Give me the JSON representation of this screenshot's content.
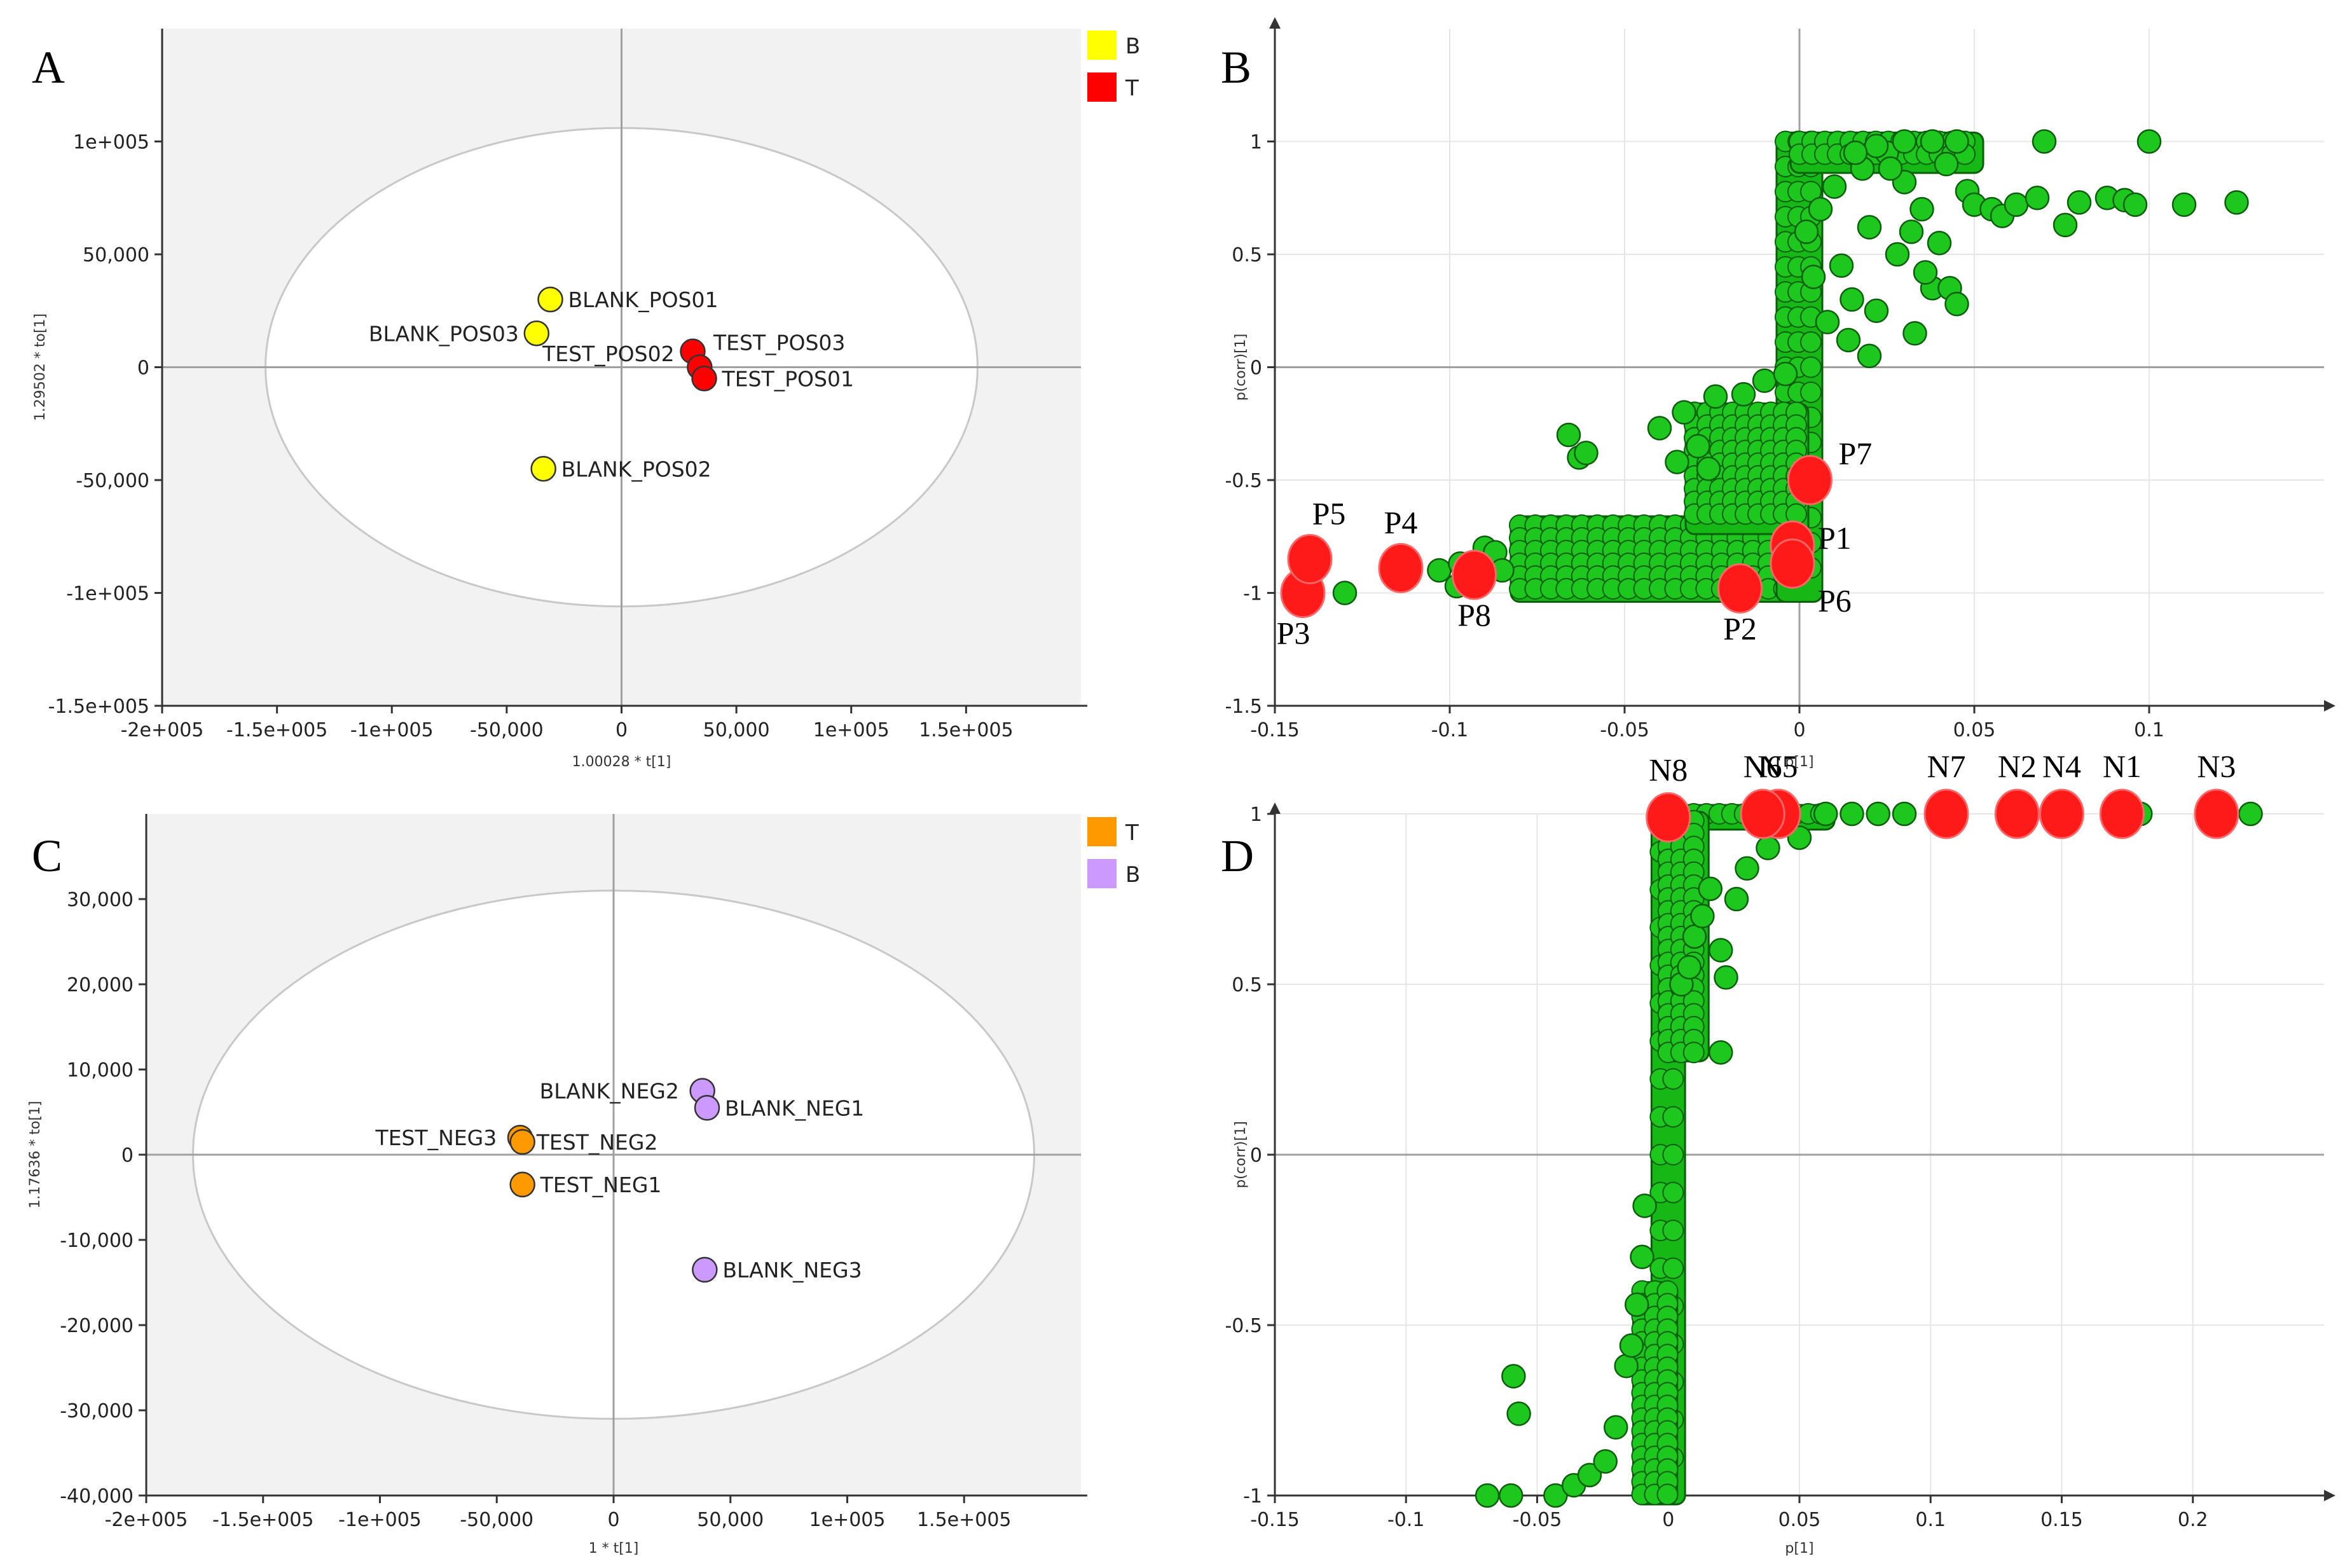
{
  "chart_data": [
    {
      "panel": "A",
      "type": "scatter",
      "xlabel": "1.00028 * t[1]",
      "ylabel": "1.29502 * to[1]",
      "xlim": [
        -200000,
        200000
      ],
      "ylim": [
        -150000,
        150000
      ],
      "xticks": [
        {
          "v": -200000,
          "label": "-2e+005"
        },
        {
          "v": -150000,
          "label": "-1.5e+005"
        },
        {
          "v": -100000,
          "label": "-1e+005"
        },
        {
          "v": -50000,
          "label": "-50,000"
        },
        {
          "v": 0,
          "label": "0"
        },
        {
          "v": 50000,
          "label": "50,000"
        },
        {
          "v": 100000,
          "label": "1e+005"
        },
        {
          "v": 150000,
          "label": "1.5e+005"
        }
      ],
      "yticks": [
        {
          "v": 100000,
          "label": "1e+005"
        },
        {
          "v": 50000,
          "label": "50,000"
        },
        {
          "v": 0,
          "label": "0"
        },
        {
          "v": -50000,
          "label": "-50,000"
        },
        {
          "v": -100000,
          "label": "-1e+005"
        },
        {
          "v": -150000,
          "label": "-1.5e+005"
        }
      ],
      "ellipse": {
        "cx": 0,
        "cy": 0,
        "rx": 155000,
        "ry": 106000
      },
      "legend": [
        {
          "label": "B",
          "color": "#ffff00"
        },
        {
          "label": "T",
          "color": "#ff0000"
        }
      ],
      "points": [
        {
          "x": -31000,
          "y": 30000,
          "label": "BLANK_POS01",
          "color": "#ffff00",
          "anchor": "start"
        },
        {
          "x": -37000,
          "y": 15000,
          "label": "BLANK_POS03",
          "color": "#ffff00",
          "anchor": "end"
        },
        {
          "x": -34000,
          "y": -45000,
          "label": "BLANK_POS02",
          "color": "#ffff00",
          "anchor": "start"
        },
        {
          "x": 31000,
          "y": 7000,
          "label": "TEST_POS03",
          "color": "#ff0000",
          "anchor": "start",
          "lx": 40000,
          "ly": 11000
        },
        {
          "x": 34000,
          "y": 0,
          "label": "TEST_POS02",
          "color": "#ff0000",
          "anchor": "end",
          "lx": 23000,
          "ly": 6000
        },
        {
          "x": 36000,
          "y": -5000,
          "label": "TEST_POS01",
          "color": "#ff0000",
          "anchor": "start"
        }
      ]
    },
    {
      "panel": "B",
      "type": "scatter",
      "xlabel": "p[1]",
      "ylabel": "p(corr)[1]",
      "xlim": [
        -0.15,
        0.15
      ],
      "ylim": [
        -1.5,
        1.5
      ],
      "xticks": [
        {
          "v": -0.15,
          "label": "-0.15"
        },
        {
          "v": -0.1,
          "label": "-0.1"
        },
        {
          "v": -0.05,
          "label": "-0.05"
        },
        {
          "v": 0,
          "label": "0"
        },
        {
          "v": 0.05,
          "label": "0.05"
        },
        {
          "v": 0.1,
          "label": "0.1"
        }
      ],
      "yticks": [
        {
          "v": 1,
          "label": "1"
        },
        {
          "v": 0.5,
          "label": "0.5"
        },
        {
          "v": 0,
          "label": "0"
        },
        {
          "v": -0.5,
          "label": "-0.5"
        },
        {
          "v": -1,
          "label": "-1"
        },
        {
          "v": -1.5,
          "label": "-1.5"
        }
      ],
      "markers": [
        {
          "label": "P1",
          "x": -0.002,
          "y": -0.79
        },
        {
          "label": "P2",
          "x": -0.017,
          "y": -0.98
        },
        {
          "label": "P3",
          "x": -0.142,
          "y": -1.0
        },
        {
          "label": "P4",
          "x": -0.114,
          "y": -0.89
        },
        {
          "label": "P5",
          "x": -0.14,
          "y": -0.85
        },
        {
          "label": "P6",
          "x": -0.002,
          "y": -0.87
        },
        {
          "label": "P7",
          "x": 0.003,
          "y": -0.5
        },
        {
          "label": "P8",
          "x": -0.093,
          "y": -0.92
        }
      ],
      "feature_points": [
        [
          -0.13,
          -1.0
        ],
        [
          -0.098,
          -0.97
        ],
        [
          -0.103,
          -0.9
        ],
        [
          -0.097,
          -0.87
        ],
        [
          -0.09,
          -0.8
        ],
        [
          -0.087,
          -0.82
        ],
        [
          -0.085,
          -0.9
        ],
        [
          -0.066,
          -0.3
        ],
        [
          -0.063,
          -0.4
        ],
        [
          -0.061,
          -0.38
        ],
        [
          -0.04,
          -0.27
        ],
        [
          -0.033,
          -0.2
        ],
        [
          -0.029,
          -0.35
        ],
        [
          -0.024,
          -0.13
        ],
        [
          -0.016,
          -0.12
        ],
        [
          -0.01,
          -0.06
        ],
        [
          -0.004,
          -0.03
        ],
        [
          -0.035,
          -0.42
        ],
        [
          -0.026,
          -0.45
        ],
        [
          0.002,
          0.6
        ],
        [
          0.004,
          0.4
        ],
        [
          0.006,
          0.7
        ],
        [
          0.01,
          0.8
        ],
        [
          0.012,
          0.45
        ],
        [
          0.015,
          0.3
        ],
        [
          0.018,
          0.88
        ],
        [
          0.02,
          0.62
        ],
        [
          0.022,
          0.25
        ],
        [
          0.025,
          0.95
        ],
        [
          0.028,
          0.5
        ],
        [
          0.03,
          0.82
        ],
        [
          0.033,
          0.15
        ],
        [
          0.035,
          0.7
        ],
        [
          0.038,
          0.35
        ],
        [
          0.04,
          0.55
        ],
        [
          0.042,
          0.9
        ],
        [
          0.043,
          0.35
        ],
        [
          0.045,
          0.28
        ],
        [
          0.048,
          0.78
        ],
        [
          0.05,
          0.72
        ],
        [
          0.055,
          0.7
        ],
        [
          0.058,
          0.67
        ],
        [
          0.062,
          0.72
        ],
        [
          0.068,
          0.75
        ],
        [
          0.076,
          0.63
        ],
        [
          0.08,
          0.73
        ],
        [
          0.088,
          0.75
        ],
        [
          0.093,
          0.74
        ],
        [
          0.096,
          0.72
        ],
        [
          0.11,
          0.72
        ],
        [
          0.125,
          0.73
        ],
        [
          0.07,
          1.0
        ],
        [
          0.1,
          1.0
        ],
        [
          0.045,
          1.0
        ],
        [
          0.038,
          1.0
        ],
        [
          0.03,
          1.0
        ],
        [
          0.022,
          0.98
        ],
        [
          0.016,
          0.95
        ],
        [
          0.026,
          0.88
        ],
        [
          0.014,
          0.12
        ],
        [
          0.02,
          0.05
        ],
        [
          0.008,
          0.2
        ],
        [
          0.032,
          0.6
        ],
        [
          0.036,
          0.42
        ]
      ],
      "clusters": [
        {
          "x0": -0.08,
          "x1": 0.0,
          "y0": -1.0,
          "y1": -0.7
        },
        {
          "x0": -0.004,
          "x1": 0.004,
          "y0": -1.0,
          "y1": 1.0
        },
        {
          "x0": 0.0,
          "x1": 0.05,
          "y0": 0.9,
          "y1": 1.0
        },
        {
          "x0": -0.03,
          "x1": 0.0,
          "y0": -0.7,
          "y1": -0.2
        }
      ]
    },
    {
      "panel": "C",
      "type": "scatter",
      "xlabel": "1 * t[1]",
      "ylabel": "1.17636 * to[1]",
      "xlim": [
        -200000,
        200000
      ],
      "ylim": [
        -40000,
        40000
      ],
      "xticks": [
        {
          "v": -200000,
          "label": "-2e+005"
        },
        {
          "v": -150000,
          "label": "-1.5e+005"
        },
        {
          "v": -100000,
          "label": "-1e+005"
        },
        {
          "v": -50000,
          "label": "-50,000"
        },
        {
          "v": 0,
          "label": "0"
        },
        {
          "v": 50000,
          "label": "50,000"
        },
        {
          "v": 100000,
          "label": "1e+005"
        },
        {
          "v": 150000,
          "label": "1.5e+005"
        }
      ],
      "yticks": [
        {
          "v": 30000,
          "label": "30,000"
        },
        {
          "v": 20000,
          "label": "20,000"
        },
        {
          "v": 10000,
          "label": "10,000"
        },
        {
          "v": 0,
          "label": "0"
        },
        {
          "v": -10000,
          "label": "-10,000"
        },
        {
          "v": -20000,
          "label": "-20,000"
        },
        {
          "v": -30000,
          "label": "-30,000"
        },
        {
          "v": -40000,
          "label": "-40,000"
        }
      ],
      "ellipse": {
        "cx": 0,
        "cy": 0,
        "rx": 180000,
        "ry": 31000
      },
      "legend": [
        {
          "label": "T",
          "color": "#ff9900"
        },
        {
          "label": "B",
          "color": "#cc99ff"
        }
      ],
      "points": [
        {
          "x": 38000,
          "y": 7500,
          "label": "BLANK_NEG2",
          "color": "#cc99ff",
          "anchor": "end",
          "lx": 28000,
          "ly": 7500
        },
        {
          "x": 40000,
          "y": 5500,
          "label": "BLANK_NEG1",
          "color": "#cc99ff",
          "anchor": "start"
        },
        {
          "x": 39000,
          "y": -13500,
          "label": "BLANK_NEG3",
          "color": "#cc99ff",
          "anchor": "start"
        },
        {
          "x": -40000,
          "y": 2000,
          "label": "TEST_NEG3",
          "color": "#ff9900",
          "anchor": "end",
          "lx": -50000,
          "ly": 2000
        },
        {
          "x": -39000,
          "y": 1500,
          "label": "TEST_NEG2",
          "color": "#ff9900",
          "anchor": "start",
          "lx": -33000,
          "ly": 1500
        },
        {
          "x": -39000,
          "y": -3500,
          "label": "TEST_NEG1",
          "color": "#ff9900",
          "anchor": "start"
        }
      ]
    },
    {
      "panel": "D",
      "type": "scatter",
      "xlabel": "p[1]",
      "ylabel": "p(corr)[1]",
      "xlim": [
        -0.15,
        0.25
      ],
      "ylim": [
        -1.0,
        1.0
      ],
      "xticks": [
        {
          "v": -0.15,
          "label": "-0.15"
        },
        {
          "v": -0.1,
          "label": "-0.1"
        },
        {
          "v": -0.05,
          "label": "-0.05"
        },
        {
          "v": 0,
          "label": "0"
        },
        {
          "v": 0.05,
          "label": "0.05"
        },
        {
          "v": 0.1,
          "label": "0.1"
        },
        {
          "v": 0.15,
          "label": "0.15"
        },
        {
          "v": 0.2,
          "label": "0.2"
        }
      ],
      "yticks": [
        {
          "v": 1,
          "label": "1"
        },
        {
          "v": 0.5,
          "label": "0.5"
        },
        {
          "v": 0,
          "label": "0"
        },
        {
          "v": -0.5,
          "label": "-0.5"
        },
        {
          "v": -1,
          "label": "-1"
        }
      ],
      "markers": [
        {
          "label": "N1",
          "x": 0.173,
          "y": 1.0
        },
        {
          "label": "N2",
          "x": 0.133,
          "y": 1.0
        },
        {
          "label": "N3",
          "x": 0.209,
          "y": 1.0
        },
        {
          "label": "N4",
          "x": 0.15,
          "y": 1.0
        },
        {
          "label": "N5",
          "x": 0.042,
          "y": 1.0
        },
        {
          "label": "N6",
          "x": 0.036,
          "y": 1.0
        },
        {
          "label": "N7",
          "x": 0.106,
          "y": 1.0
        },
        {
          "label": "N8",
          "x": 0.0,
          "y": 0.99
        }
      ],
      "feature_points": [
        [
          -0.069,
          -1.0
        ],
        [
          -0.06,
          -1.0
        ],
        [
          -0.059,
          -0.65
        ],
        [
          -0.057,
          -0.76
        ],
        [
          -0.043,
          -1.0
        ],
        [
          -0.036,
          -0.97
        ],
        [
          -0.03,
          -0.94
        ],
        [
          -0.024,
          -0.9
        ],
        [
          -0.02,
          -0.8
        ],
        [
          -0.016,
          -0.62
        ],
        [
          -0.014,
          -0.56
        ],
        [
          -0.012,
          -0.44
        ],
        [
          -0.01,
          -0.3
        ],
        [
          -0.009,
          -0.15
        ],
        [
          0.005,
          0.5
        ],
        [
          0.008,
          0.55
        ],
        [
          0.01,
          0.64
        ],
        [
          0.013,
          0.7
        ],
        [
          0.016,
          0.78
        ],
        [
          0.02,
          0.6
        ],
        [
          0.02,
          0.3
        ],
        [
          0.022,
          0.52
        ],
        [
          0.026,
          0.75
        ],
        [
          0.03,
          0.84
        ],
        [
          0.038,
          0.9
        ],
        [
          0.05,
          0.93
        ],
        [
          0.06,
          1.0
        ],
        [
          0.07,
          1.0
        ],
        [
          0.08,
          1.0
        ],
        [
          0.09,
          1.0
        ],
        [
          0.18,
          1.0
        ],
        [
          0.222,
          1.0
        ],
        [
          0.173,
          1.0
        ],
        [
          0.209,
          1.0
        ]
      ],
      "clusters": [
        {
          "x0": -0.003,
          "x1": 0.003,
          "y0": -1.0,
          "y1": 1.0
        },
        {
          "x0": -0.01,
          "x1": 0.0,
          "y0": -1.0,
          "y1": -0.4
        },
        {
          "x0": 0.0,
          "x1": 0.06,
          "y0": 0.98,
          "y1": 1.0
        },
        {
          "x0": 0.0,
          "x1": 0.012,
          "y0": 0.3,
          "y1": 0.98
        }
      ]
    }
  ]
}
